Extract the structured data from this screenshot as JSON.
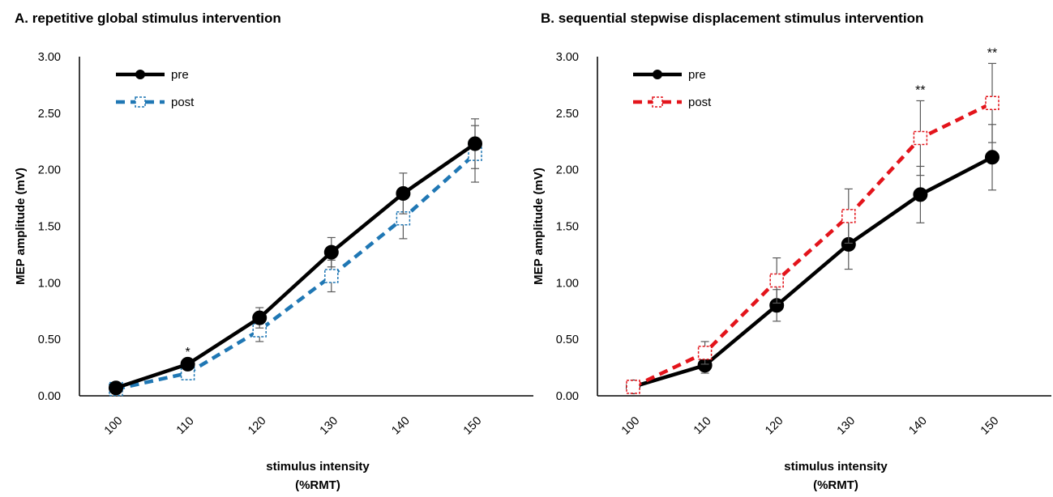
{
  "chart_data": [
    {
      "type": "line",
      "title": "A. repetitive global stimulus intervention",
      "xlabel": [
        "stimulus intensity",
        "(%RMT)"
      ],
      "ylabel": "MEP amplitude (mV)",
      "categories": [
        "100",
        "110",
        "120",
        "130",
        "140",
        "150"
      ],
      "ylim": [
        0,
        3
      ],
      "yticks": [
        "0.00",
        "0.50",
        "1.00",
        "1.50",
        "2.00",
        "2.50",
        "3.00"
      ],
      "legend_position": "top-left",
      "series": [
        {
          "name": "pre",
          "color": "#000000",
          "dashed": false,
          "marker": "filled-circle",
          "values": [
            0.07,
            0.28,
            0.69,
            1.27,
            1.79,
            2.23
          ],
          "error": [
            0,
            0,
            0.09,
            0.13,
            0.18,
            0.22
          ]
        },
        {
          "name": "post",
          "color": "#1f77b4",
          "dashed": true,
          "marker": "open-square",
          "values": [
            0.06,
            0.2,
            0.58,
            1.06,
            1.57,
            2.14
          ],
          "error": [
            0,
            0,
            0.1,
            0.14,
            0.18,
            0.25
          ]
        }
      ],
      "annotations": [
        {
          "category": "110",
          "text": "*"
        }
      ]
    },
    {
      "type": "line",
      "title": "B. sequential stepwise displacement stimulus intervention",
      "xlabel": [
        "stimulus intensity",
        "(%RMT)"
      ],
      "ylabel": "MEP amplitude (mV)",
      "categories": [
        "100",
        "110",
        "120",
        "130",
        "140",
        "150"
      ],
      "ylim": [
        0,
        3
      ],
      "yticks": [
        "0.00",
        "0.50",
        "1.00",
        "1.50",
        "2.00",
        "2.50",
        "3.00"
      ],
      "legend_position": "top-left",
      "series": [
        {
          "name": "pre",
          "color": "#000000",
          "dashed": false,
          "marker": "filled-circle",
          "values": [
            0.08,
            0.27,
            0.8,
            1.34,
            1.78,
            2.11
          ],
          "error": [
            0,
            0.07,
            0.14,
            0.22,
            0.25,
            0.29
          ]
        },
        {
          "name": "post",
          "color": "#e3141b",
          "dashed": true,
          "marker": "open-square",
          "values": [
            0.08,
            0.38,
            1.02,
            1.59,
            2.28,
            2.59
          ],
          "error": [
            0,
            0.1,
            0.2,
            0.24,
            0.33,
            0.35
          ]
        }
      ],
      "annotations": [
        {
          "category": "140",
          "text": "**"
        },
        {
          "category": "150",
          "text": "**"
        }
      ]
    }
  ]
}
